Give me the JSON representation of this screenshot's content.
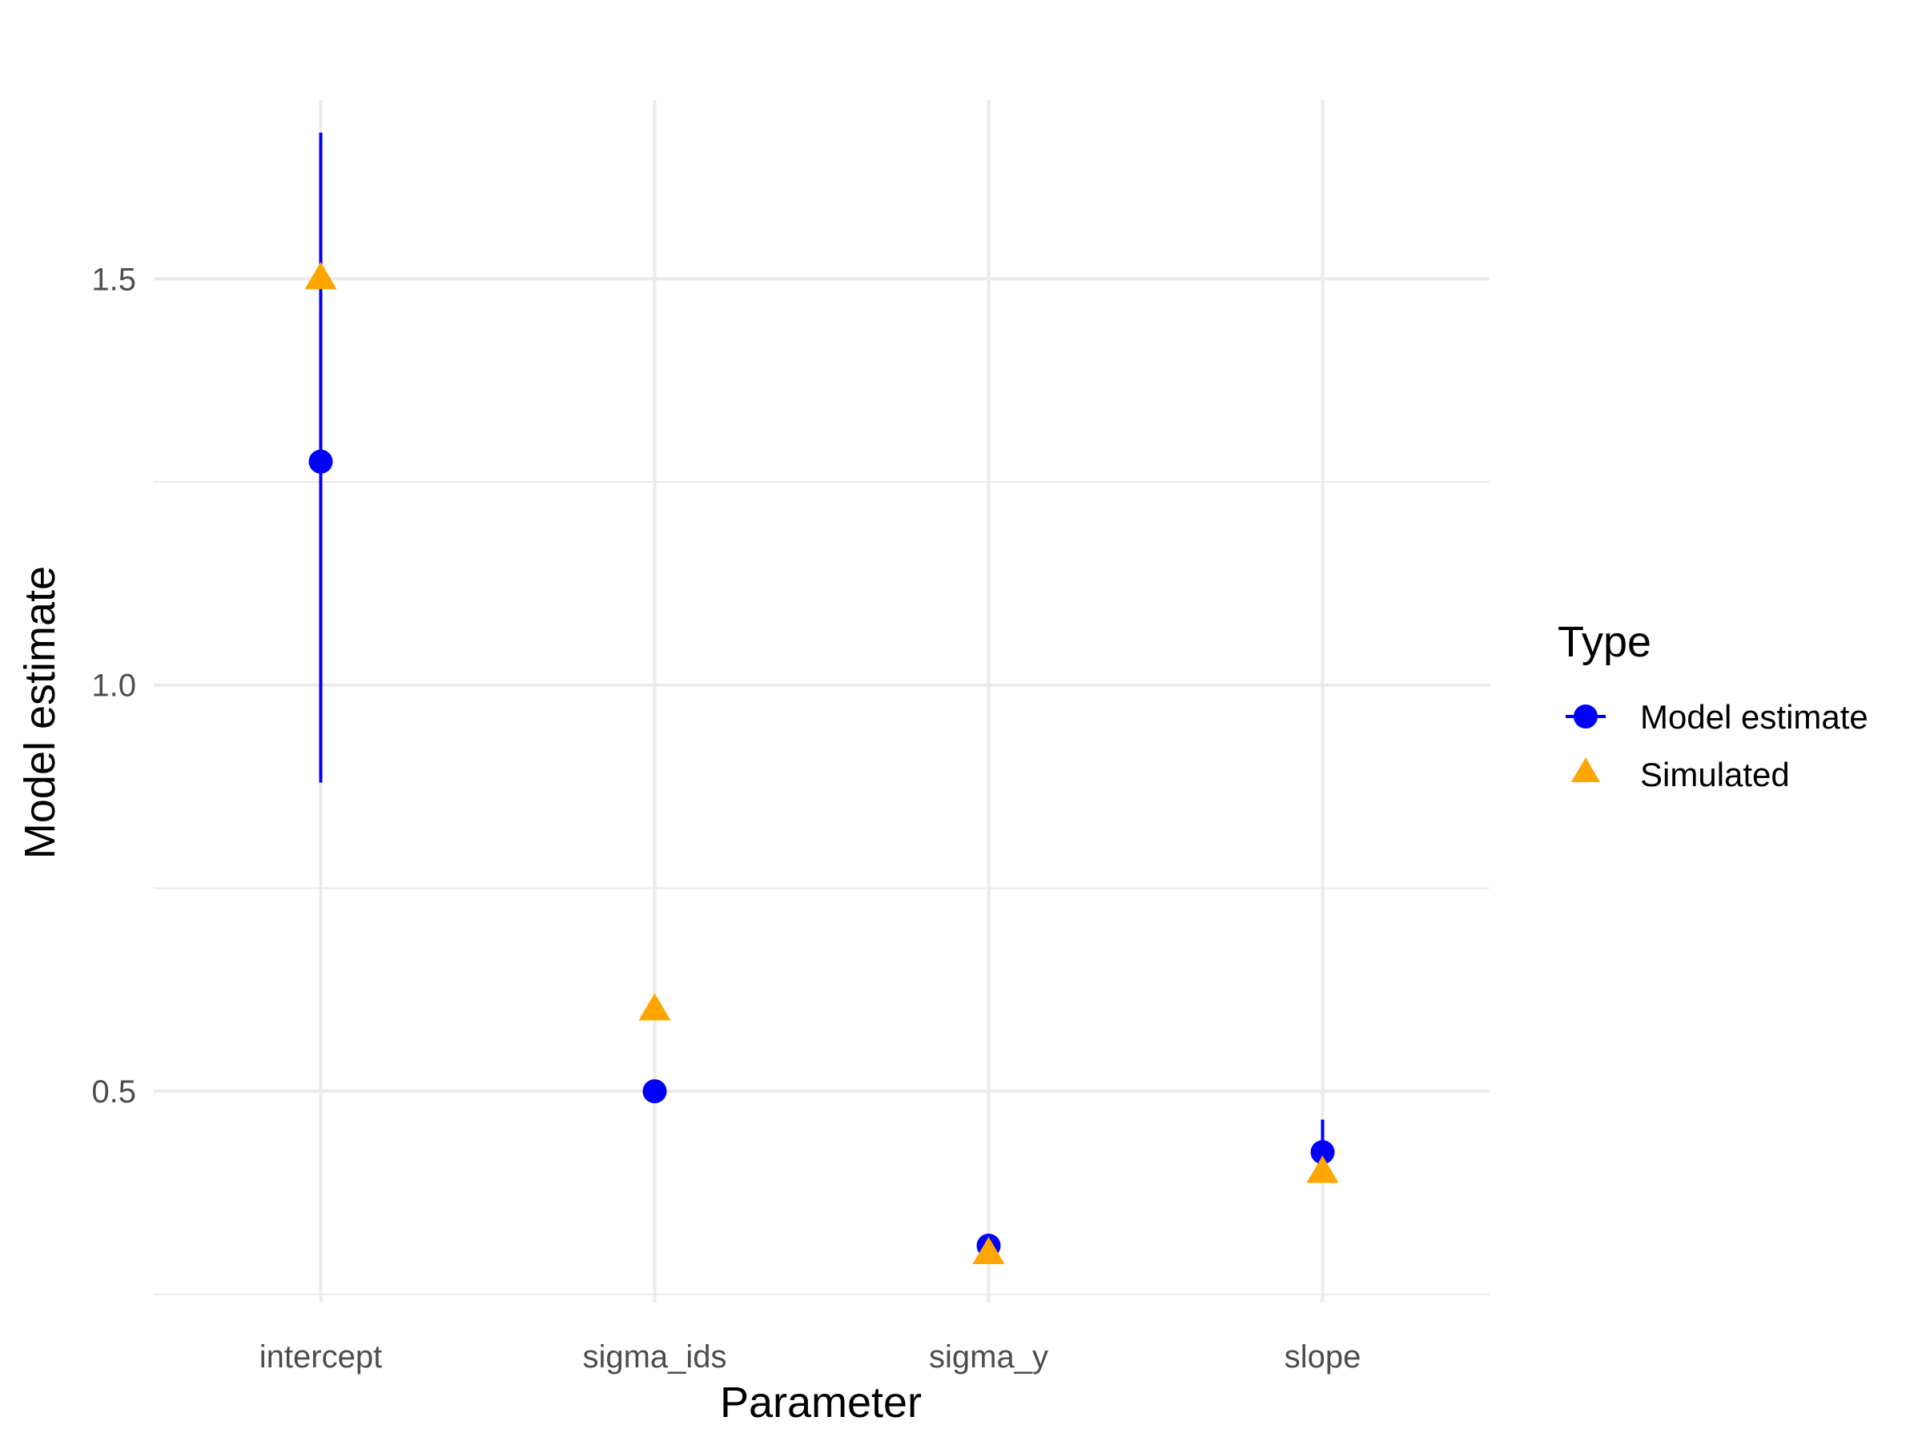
{
  "chart_data": {
    "type": "scatter",
    "title": "",
    "xlabel": "Parameter",
    "ylabel": "Model estimate",
    "categories": [
      "intercept",
      "sigma_ids",
      "sigma_y",
      "slope"
    ],
    "ylim": [
      0.24,
      1.72
    ],
    "yticks": [
      0.5,
      1.0,
      1.5
    ],
    "ytick_labels": [
      "0.5",
      "1.0",
      "1.5"
    ],
    "y_minor_ticks": [
      0.25,
      0.75,
      1.25
    ],
    "grid": true,
    "series": [
      {
        "name": "Model estimate",
        "marker": "circle",
        "color": "#0000ff",
        "values": [
          1.275,
          0.5,
          0.31,
          0.425
        ],
        "lower": [
          0.88,
          0.5,
          0.31,
          0.39
        ],
        "upper": [
          1.68,
          0.5,
          0.31,
          0.465
        ]
      },
      {
        "name": "Simulated",
        "marker": "triangle",
        "color": "#ffa500",
        "values": [
          1.5,
          0.6,
          0.3,
          0.4
        ]
      }
    ],
    "legend": {
      "title": "Type",
      "position": "right",
      "entries": [
        "Model estimate",
        "Simulated"
      ]
    }
  }
}
